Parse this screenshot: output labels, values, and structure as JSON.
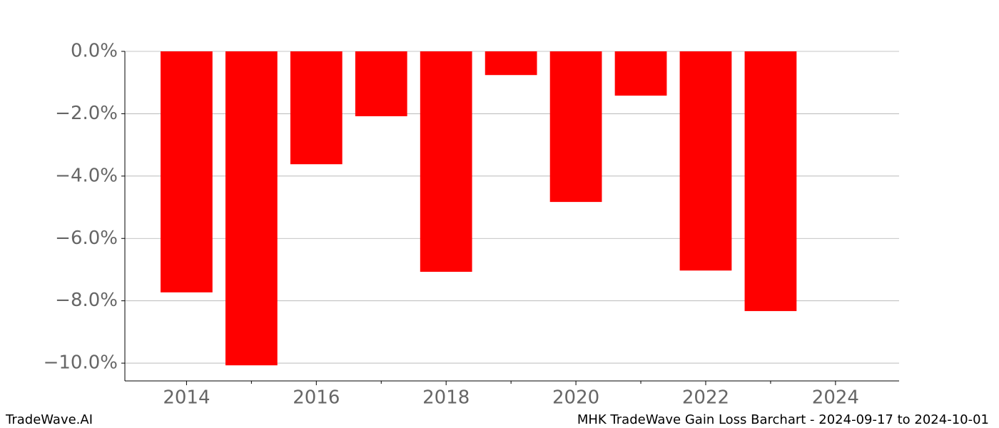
{
  "chart_data": {
    "type": "bar",
    "title": "MHK TradeWave Gain Loss Barchart - 2024-09-17 to 2024-10-01",
    "source": "TradeWave.AI",
    "x": [
      2014,
      2015,
      2016,
      2017,
      2018,
      2019,
      2020,
      2021,
      2022,
      2023
    ],
    "values": [
      -7.73,
      -10.07,
      -3.62,
      -2.08,
      -7.07,
      -0.76,
      -4.83,
      -1.42,
      -7.03,
      -8.33
    ],
    "color": "#ff0000",
    "bar_width": 0.8,
    "xlim": [
      2013.05,
      2024.98
    ],
    "xticks": [
      2014,
      2016,
      2018,
      2020,
      2022,
      2024
    ],
    "xminorticks": [
      2015,
      2017,
      2019,
      2021,
      2023
    ],
    "ylim": [
      -10.57,
      0.0
    ],
    "yticks": [
      {
        "value": 0,
        "label": "0.0%"
      },
      {
        "value": -2,
        "label": "−2.0%"
      },
      {
        "value": -4,
        "label": "−4.0%"
      },
      {
        "value": -6,
        "label": "−6.0%"
      },
      {
        "value": -8,
        "label": "−8.0%"
      },
      {
        "value": -10,
        "label": "−10.0%"
      }
    ],
    "grid": true
  }
}
